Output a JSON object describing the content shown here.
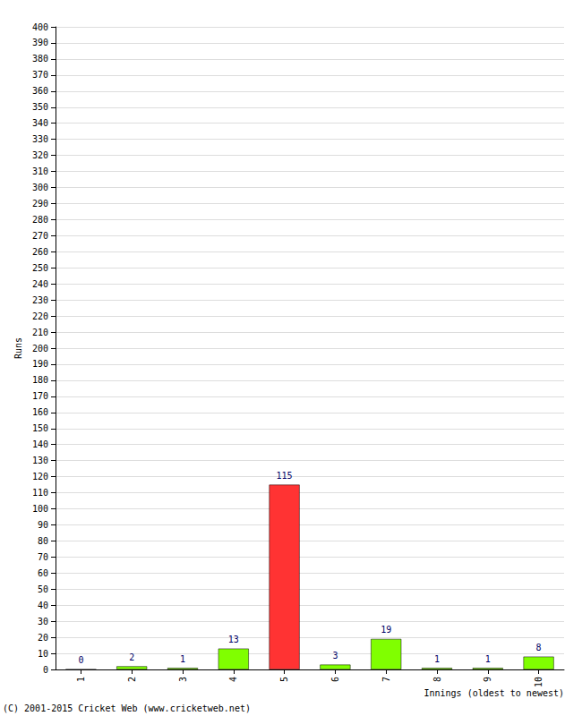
{
  "chart_data": {
    "type": "bar",
    "x_label": "Innings (oldest to newest)",
    "y_label": "Runs",
    "annotations": [
      "(C) 2001-2015 Cricket Web (www.cricketweb.net)"
    ],
    "categories": [
      "1",
      "2",
      "3",
      "4",
      "5",
      "6",
      "7",
      "8",
      "9",
      "10"
    ],
    "values": [
      0,
      2,
      1,
      13,
      115,
      3,
      19,
      1,
      1,
      8
    ],
    "colors": [
      "#80ff00",
      "#80ff00",
      "#80ff00",
      "#80ff00",
      "#ff3333",
      "#80ff00",
      "#80ff00",
      "#80ff00",
      "#80ff00",
      "#80ff00"
    ],
    "ylim": [
      0,
      400
    ],
    "yticks": [
      0,
      10,
      20,
      30,
      40,
      50,
      60,
      70,
      80,
      90,
      100,
      110,
      120,
      130,
      140,
      150,
      160,
      170,
      180,
      190,
      200,
      210,
      220,
      230,
      240,
      250,
      260,
      270,
      280,
      290,
      300,
      310,
      320,
      330,
      340,
      350,
      360,
      370,
      380,
      390,
      400
    ],
    "grid": true,
    "data_labels": true
  }
}
